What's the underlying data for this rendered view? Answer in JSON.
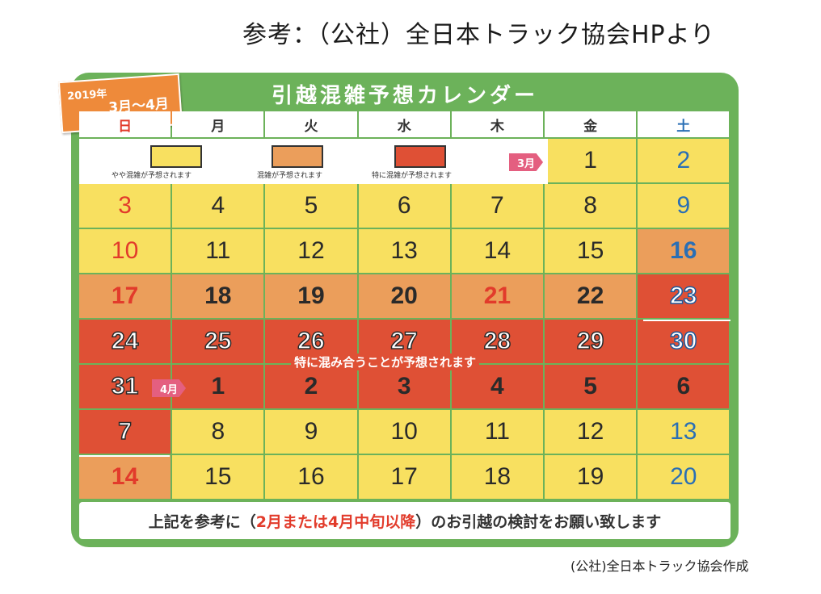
{
  "source_caption": "参考：（公社）全日本トラック協会HPより",
  "badge": {
    "year": "2019年",
    "range": "3月～4月"
  },
  "title": "引越混雑予想カレンダー",
  "weekdays": [
    "日",
    "月",
    "火",
    "水",
    "木",
    "金",
    "土"
  ],
  "legend": [
    {
      "label": "やや混雑が予想されます",
      "color": "#f8e060"
    },
    {
      "label": "混雑が予想されます",
      "color": "#eb9e5b"
    },
    {
      "label": "特に混雑が予想されます",
      "color": "#df5035"
    }
  ],
  "month_markers": {
    "march": "3月",
    "april": "4月"
  },
  "rows": [
    [
      null,
      null,
      null,
      null,
      null,
      {
        "d": "1",
        "c": "y"
      },
      {
        "d": "2",
        "c": "y"
      }
    ],
    [
      {
        "d": "3",
        "c": "y"
      },
      {
        "d": "4",
        "c": "y"
      },
      {
        "d": "5",
        "c": "y"
      },
      {
        "d": "6",
        "c": "y"
      },
      {
        "d": "7",
        "c": "y"
      },
      {
        "d": "8",
        "c": "y"
      },
      {
        "d": "9",
        "c": "y"
      }
    ],
    [
      {
        "d": "10",
        "c": "y"
      },
      {
        "d": "11",
        "c": "y"
      },
      {
        "d": "12",
        "c": "y"
      },
      {
        "d": "13",
        "c": "y"
      },
      {
        "d": "14",
        "c": "y"
      },
      {
        "d": "15",
        "c": "y"
      },
      {
        "d": "16",
        "c": "o"
      }
    ],
    [
      {
        "d": "17",
        "c": "o"
      },
      {
        "d": "18",
        "c": "o"
      },
      {
        "d": "19",
        "c": "o"
      },
      {
        "d": "20",
        "c": "o"
      },
      {
        "d": "21",
        "c": "o"
      },
      {
        "d": "22",
        "c": "o"
      },
      {
        "d": "23",
        "c": "r"
      }
    ],
    [
      {
        "d": "24",
        "c": "r"
      },
      {
        "d": "25",
        "c": "r"
      },
      {
        "d": "26",
        "c": "r"
      },
      {
        "d": "27",
        "c": "r"
      },
      {
        "d": "28",
        "c": "r"
      },
      {
        "d": "29",
        "c": "r"
      },
      {
        "d": "30",
        "c": "r"
      }
    ],
    [
      {
        "d": "31",
        "c": "r"
      },
      {
        "d": "1",
        "c": "r"
      },
      {
        "d": "2",
        "c": "r"
      },
      {
        "d": "3",
        "c": "r"
      },
      {
        "d": "4",
        "c": "r"
      },
      {
        "d": "5",
        "c": "r"
      },
      {
        "d": "6",
        "c": "r"
      }
    ],
    [
      {
        "d": "7",
        "c": "r"
      },
      {
        "d": "8",
        "c": "y"
      },
      {
        "d": "9",
        "c": "y"
      },
      {
        "d": "10",
        "c": "y"
      },
      {
        "d": "11",
        "c": "y"
      },
      {
        "d": "12",
        "c": "y"
      },
      {
        "d": "13",
        "c": "y"
      }
    ],
    [
      {
        "d": "14",
        "c": "o"
      },
      {
        "d": "15",
        "c": "y"
      },
      {
        "d": "16",
        "c": "y"
      },
      {
        "d": "17",
        "c": "y"
      },
      {
        "d": "18",
        "c": "y"
      },
      {
        "d": "19",
        "c": "y"
      },
      {
        "d": "20",
        "c": "y"
      }
    ]
  ],
  "banner": "特に混み合うことが予想されます",
  "footer": {
    "before": "上記を参考に（",
    "highlight": "2月または4月中旬以降",
    "after": "）のお引越の検討をお願い致します"
  },
  "credit": "(公社)全日本トラック協会作成"
}
